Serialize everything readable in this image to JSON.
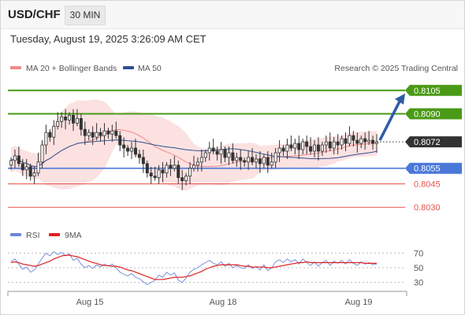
{
  "header": {
    "symbol": "USD/CHF",
    "timeframe": "30 MIN",
    "datetime": "Tuesday, August 19, 2025 3:26:09 AM CET"
  },
  "legend": {
    "ma20_bb": "MA 20 + Bollinger Bands",
    "ma50": "MA 50",
    "ma20_color": "#f08a8a",
    "ma50_color": "#2f4f8f",
    "copyright": "Research © 2025 Trading Central"
  },
  "rsi_legend": {
    "rsi": "RSI",
    "ma9": "9MA",
    "rsi_color": "#6b87d6",
    "ma9_color": "#e02020"
  },
  "chart_data": [
    {
      "type": "candlestick",
      "title": "",
      "x_ticks": [
        "Aug 15",
        "Aug 18",
        "Aug 19"
      ],
      "ylim": [
        0.802,
        0.8115
      ],
      "current_price": {
        "value": "0.8072",
        "label": "0.8072",
        "color": "#333333"
      },
      "forecast_target": "0.8105",
      "levels": [
        {
          "value": "0.8105",
          "label": "0.8105",
          "style": "resistance",
          "color": "#4a9a16"
        },
        {
          "value": "0.8090",
          "label": "0.8090",
          "style": "resistance",
          "color": "#4a9a16"
        },
        {
          "value": "0.8055",
          "label": "0.8055",
          "style": "pivot",
          "color": "#4a78d8"
        },
        {
          "value": "0.8045",
          "label": "0.8045",
          "style": "support",
          "color": "#e8534a"
        },
        {
          "value": "0.8030",
          "label": "0.8030",
          "style": "support",
          "color": "#e8534a"
        }
      ],
      "closes": [
        0.806,
        0.8063,
        0.8058,
        0.8054,
        0.8056,
        0.805,
        0.8052,
        0.8059,
        0.807,
        0.8078,
        0.8075,
        0.8082,
        0.8085,
        0.8088,
        0.8086,
        0.8089,
        0.8084,
        0.8087,
        0.808,
        0.8076,
        0.8078,
        0.8075,
        0.8078,
        0.8076,
        0.8079,
        0.8077,
        0.8079,
        0.8076,
        0.807,
        0.8068,
        0.8066,
        0.8068,
        0.8064,
        0.8062,
        0.8058,
        0.8052,
        0.805,
        0.8049,
        0.8054,
        0.8052,
        0.8057,
        0.8055,
        0.8057,
        0.8049,
        0.8047,
        0.805,
        0.8055,
        0.8057,
        0.8059,
        0.8062,
        0.8065,
        0.8068,
        0.8066,
        0.8064,
        0.8067,
        0.8062,
        0.8065,
        0.806,
        0.8062,
        0.806,
        0.8059,
        0.8062,
        0.8059,
        0.8061,
        0.8058,
        0.8062,
        0.8057,
        0.8059,
        0.8065,
        0.8068,
        0.8066,
        0.807,
        0.8068,
        0.8071,
        0.8067,
        0.8072,
        0.8069,
        0.8066,
        0.807,
        0.8066,
        0.807,
        0.8072,
        0.8068,
        0.8072,
        0.807,
        0.8074,
        0.8071,
        0.8076,
        0.8073,
        0.8071,
        0.8074,
        0.8072,
        0.8073,
        0.8071,
        0.8072
      ]
    },
    {
      "type": "line",
      "title": "",
      "ylim": [
        20,
        80
      ],
      "y_ticks": [
        "70",
        "50",
        "30"
      ],
      "series": [
        {
          "name": "RSI",
          "values": [
            58,
            62,
            55,
            48,
            51,
            44,
            47,
            55,
            63,
            70,
            66,
            72,
            68,
            71,
            66,
            69,
            60,
            63,
            55,
            50,
            53,
            49,
            54,
            51,
            55,
            52,
            55,
            50,
            44,
            41,
            39,
            42,
            37,
            35,
            31,
            27,
            30,
            33,
            40,
            37,
            44,
            40,
            43,
            33,
            30,
            36,
            44,
            48,
            50,
            54,
            57,
            60,
            56,
            54,
            58,
            52,
            56,
            50,
            53,
            50,
            49,
            54,
            49,
            52,
            47,
            54,
            46,
            50,
            58,
            61,
            57,
            62,
            58,
            61,
            55,
            62,
            57,
            53,
            58,
            52,
            57,
            60,
            53,
            59,
            56,
            60,
            55,
            61,
            56,
            53,
            58,
            55,
            57,
            54,
            55
          ]
        },
        {
          "name": "9MA",
          "values": [
            57,
            58,
            57,
            55,
            54,
            53,
            52,
            53,
            55,
            57,
            59,
            62,
            64,
            66,
            67,
            67,
            66,
            65,
            63,
            61,
            59,
            57,
            56,
            54,
            53,
            53,
            52,
            52,
            51,
            49,
            47,
            46,
            44,
            42,
            40,
            38,
            36,
            34,
            34,
            34,
            35,
            36,
            37,
            37,
            37,
            38,
            39,
            41,
            43,
            45,
            48,
            50,
            52,
            53,
            54,
            54,
            54,
            54,
            54,
            53,
            52,
            52,
            51,
            51,
            51,
            51,
            50,
            50,
            51,
            52,
            53,
            54,
            55,
            56,
            57,
            57,
            58,
            57,
            57,
            57,
            57,
            57,
            57,
            57,
            57,
            57,
            57,
            57,
            57,
            57,
            57,
            56,
            56,
            56,
            56
          ]
        }
      ]
    }
  ]
}
